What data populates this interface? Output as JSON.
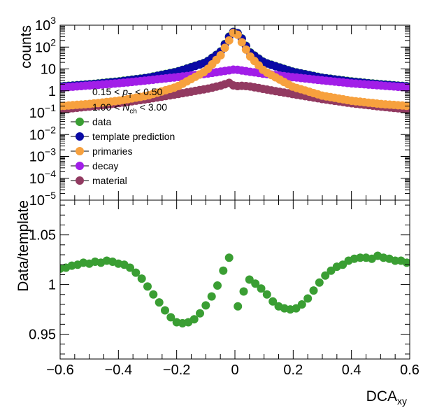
{
  "chart_data": [
    {
      "type": "scatter",
      "name": "top-panel",
      "ylabel": "counts",
      "log_y": true,
      "ylim_log10": [
        -5,
        3
      ],
      "xlim": [
        -0.6,
        0.6
      ],
      "y_tick_labels": [
        {
          "base": "10",
          "exp": "3"
        },
        {
          "base": "10",
          "exp": "2"
        },
        {
          "base": "10",
          "exp": ""
        },
        {
          "base": "1",
          "exp": ""
        },
        {
          "base": "10",
          "exp": "−1"
        },
        {
          "base": "10",
          "exp": "−2"
        },
        {
          "base": "10",
          "exp": "−3"
        },
        {
          "base": "10",
          "exp": "−4"
        },
        {
          "base": "10",
          "exp": "−5"
        }
      ],
      "annotations": [
        {
          "pre": "0.15 < ",
          "var": "p",
          "sub": "T",
          "post": " < 0.50"
        },
        {
          "pre": "1.00 < ",
          "var": "N",
          "sub": "ch",
          "post": " < 3.00"
        }
      ],
      "legend": [
        {
          "label": "data",
          "color": "#3a9e33"
        },
        {
          "label": "template prediction",
          "color": "#0a0aa5"
        },
        {
          "label": "primaries",
          "color": "#f7a13e"
        },
        {
          "label": "decay",
          "color": "#a11ee8"
        },
        {
          "label": "material",
          "color": "#923a61"
        }
      ],
      "series": [
        {
          "key": "data",
          "color": "#3a9e33",
          "points": [
            [
              -0.6,
              1.6
            ],
            [
              -0.5,
              2.0
            ],
            [
              -0.4,
              2.7
            ],
            [
              -0.3,
              4.0
            ],
            [
              -0.2,
              7.5
            ],
            [
              -0.1,
              20
            ],
            [
              -0.05,
              60
            ],
            [
              -0.02,
              300
            ],
            [
              0.0,
              600
            ],
            [
              0.02,
              300
            ],
            [
              0.05,
              60
            ],
            [
              0.1,
              20
            ],
            [
              0.2,
              7.5
            ],
            [
              0.3,
              4.0
            ],
            [
              0.4,
              2.7
            ],
            [
              0.5,
              2.0
            ],
            [
              0.6,
              1.6
            ]
          ]
        },
        {
          "key": "template prediction",
          "color": "#0a0aa5",
          "points": [
            [
              -0.6,
              1.55
            ],
            [
              -0.5,
              1.95
            ],
            [
              -0.4,
              2.6
            ],
            [
              -0.3,
              3.9
            ],
            [
              -0.2,
              7.3
            ],
            [
              -0.1,
              19.5
            ],
            [
              -0.05,
              58
            ],
            [
              -0.02,
              290
            ],
            [
              0.0,
              590
            ],
            [
              0.02,
              290
            ],
            [
              0.05,
              58
            ],
            [
              0.1,
              19.5
            ],
            [
              0.2,
              7.3
            ],
            [
              0.3,
              3.9
            ],
            [
              0.4,
              2.6
            ],
            [
              0.5,
              1.95
            ],
            [
              0.6,
              1.55
            ]
          ]
        },
        {
          "key": "primaries",
          "color": "#f7a13e",
          "points": [
            [
              -0.6,
              0.2
            ],
            [
              -0.5,
              0.25
            ],
            [
              -0.4,
              0.35
            ],
            [
              -0.3,
              0.6
            ],
            [
              -0.2,
              1.5
            ],
            [
              -0.1,
              8
            ],
            [
              -0.05,
              40
            ],
            [
              -0.02,
              200
            ],
            [
              0.0,
              600
            ],
            [
              0.02,
              200
            ],
            [
              0.05,
              40
            ],
            [
              0.1,
              8
            ],
            [
              0.2,
              1.5
            ],
            [
              0.3,
              0.6
            ],
            [
              0.4,
              0.35
            ],
            [
              0.5,
              0.25
            ],
            [
              0.6,
              0.2
            ]
          ]
        },
        {
          "key": "decay",
          "color": "#a11ee8",
          "points": [
            [
              -0.6,
              1.4
            ],
            [
              -0.5,
              1.75
            ],
            [
              -0.4,
              2.2
            ],
            [
              -0.3,
              3.0
            ],
            [
              -0.2,
              4.2
            ],
            [
              -0.1,
              6.0
            ],
            [
              -0.05,
              7.5
            ],
            [
              0.0,
              9.5
            ],
            [
              0.05,
              7.5
            ],
            [
              0.1,
              6.0
            ],
            [
              0.2,
              4.2
            ],
            [
              0.3,
              3.0
            ],
            [
              0.4,
              2.2
            ],
            [
              0.5,
              1.75
            ],
            [
              0.6,
              1.4
            ]
          ]
        },
        {
          "key": "material",
          "color": "#923a61",
          "points": [
            [
              -0.6,
              0.14
            ],
            [
              -0.5,
              0.19
            ],
            [
              -0.4,
              0.27
            ],
            [
              -0.3,
              0.42
            ],
            [
              -0.2,
              0.7
            ],
            [
              -0.1,
              1.2
            ],
            [
              -0.05,
              1.7
            ],
            [
              -0.02,
              2.3
            ],
            [
              0.0,
              1.6
            ],
            [
              0.02,
              1.7
            ],
            [
              0.05,
              1.6
            ],
            [
              0.1,
              1.2
            ],
            [
              0.2,
              0.7
            ],
            [
              0.3,
              0.42
            ],
            [
              0.4,
              0.27
            ],
            [
              0.5,
              0.19
            ],
            [
              0.6,
              0.14
            ]
          ]
        }
      ]
    },
    {
      "type": "scatter",
      "name": "bottom-panel",
      "ylabel": "Data/template",
      "xlabel": {
        "base": "DCA",
        "sub": "xy"
      },
      "xlim": [
        -0.6,
        0.6
      ],
      "ylim": [
        0.925,
        1.085
      ],
      "x_ticks": [
        -0.6,
        -0.4,
        -0.2,
        0,
        0.2,
        0.4,
        0.6
      ],
      "x_tick_labels": [
        "−0.6",
        "−0.4",
        "−0.2",
        "0",
        "0.2",
        "0.4",
        "0.6"
      ],
      "y_ticks": [
        0.95,
        1.0,
        1.05
      ],
      "y_tick_labels": [
        "0.95",
        "1",
        "1.05"
      ],
      "series": [
        {
          "name": "data",
          "color": "#3a9e33",
          "x": [
            -0.6,
            -0.58,
            -0.56,
            -0.54,
            -0.52,
            -0.5,
            -0.48,
            -0.46,
            -0.44,
            -0.42,
            -0.4,
            -0.38,
            -0.36,
            -0.34,
            -0.32,
            -0.3,
            -0.28,
            -0.26,
            -0.24,
            -0.22,
            -0.2,
            -0.18,
            -0.16,
            -0.14,
            -0.12,
            -0.1,
            -0.08,
            -0.06,
            -0.04,
            -0.02,
            0.01,
            0.03,
            0.05,
            0.07,
            0.09,
            0.11,
            0.13,
            0.15,
            0.17,
            0.19,
            0.21,
            0.23,
            0.25,
            0.27,
            0.29,
            0.31,
            0.33,
            0.35,
            0.37,
            0.39,
            0.41,
            0.43,
            0.45,
            0.47,
            0.49,
            0.51,
            0.53,
            0.55,
            0.57,
            0.59
          ],
          "y": [
            1.016,
            1.017,
            1.019,
            1.02,
            1.022,
            1.021,
            1.023,
            1.022,
            1.024,
            1.023,
            1.021,
            1.02,
            1.017,
            1.012,
            1.006,
            0.998,
            0.99,
            0.982,
            0.974,
            0.967,
            0.962,
            0.961,
            0.962,
            0.965,
            0.971,
            0.979,
            0.988,
            0.999,
            1.014,
            1.027,
            0.978,
            0.993,
            1.005,
            1.001,
            0.996,
            0.99,
            0.983,
            0.978,
            0.976,
            0.975,
            0.976,
            0.98,
            0.986,
            0.994,
            1.002,
            1.009,
            1.014,
            1.018,
            1.02,
            1.024,
            1.026,
            1.027,
            1.027,
            1.026,
            1.029,
            1.027,
            1.026,
            1.024,
            1.024,
            1.022
          ]
        }
      ]
    }
  ]
}
